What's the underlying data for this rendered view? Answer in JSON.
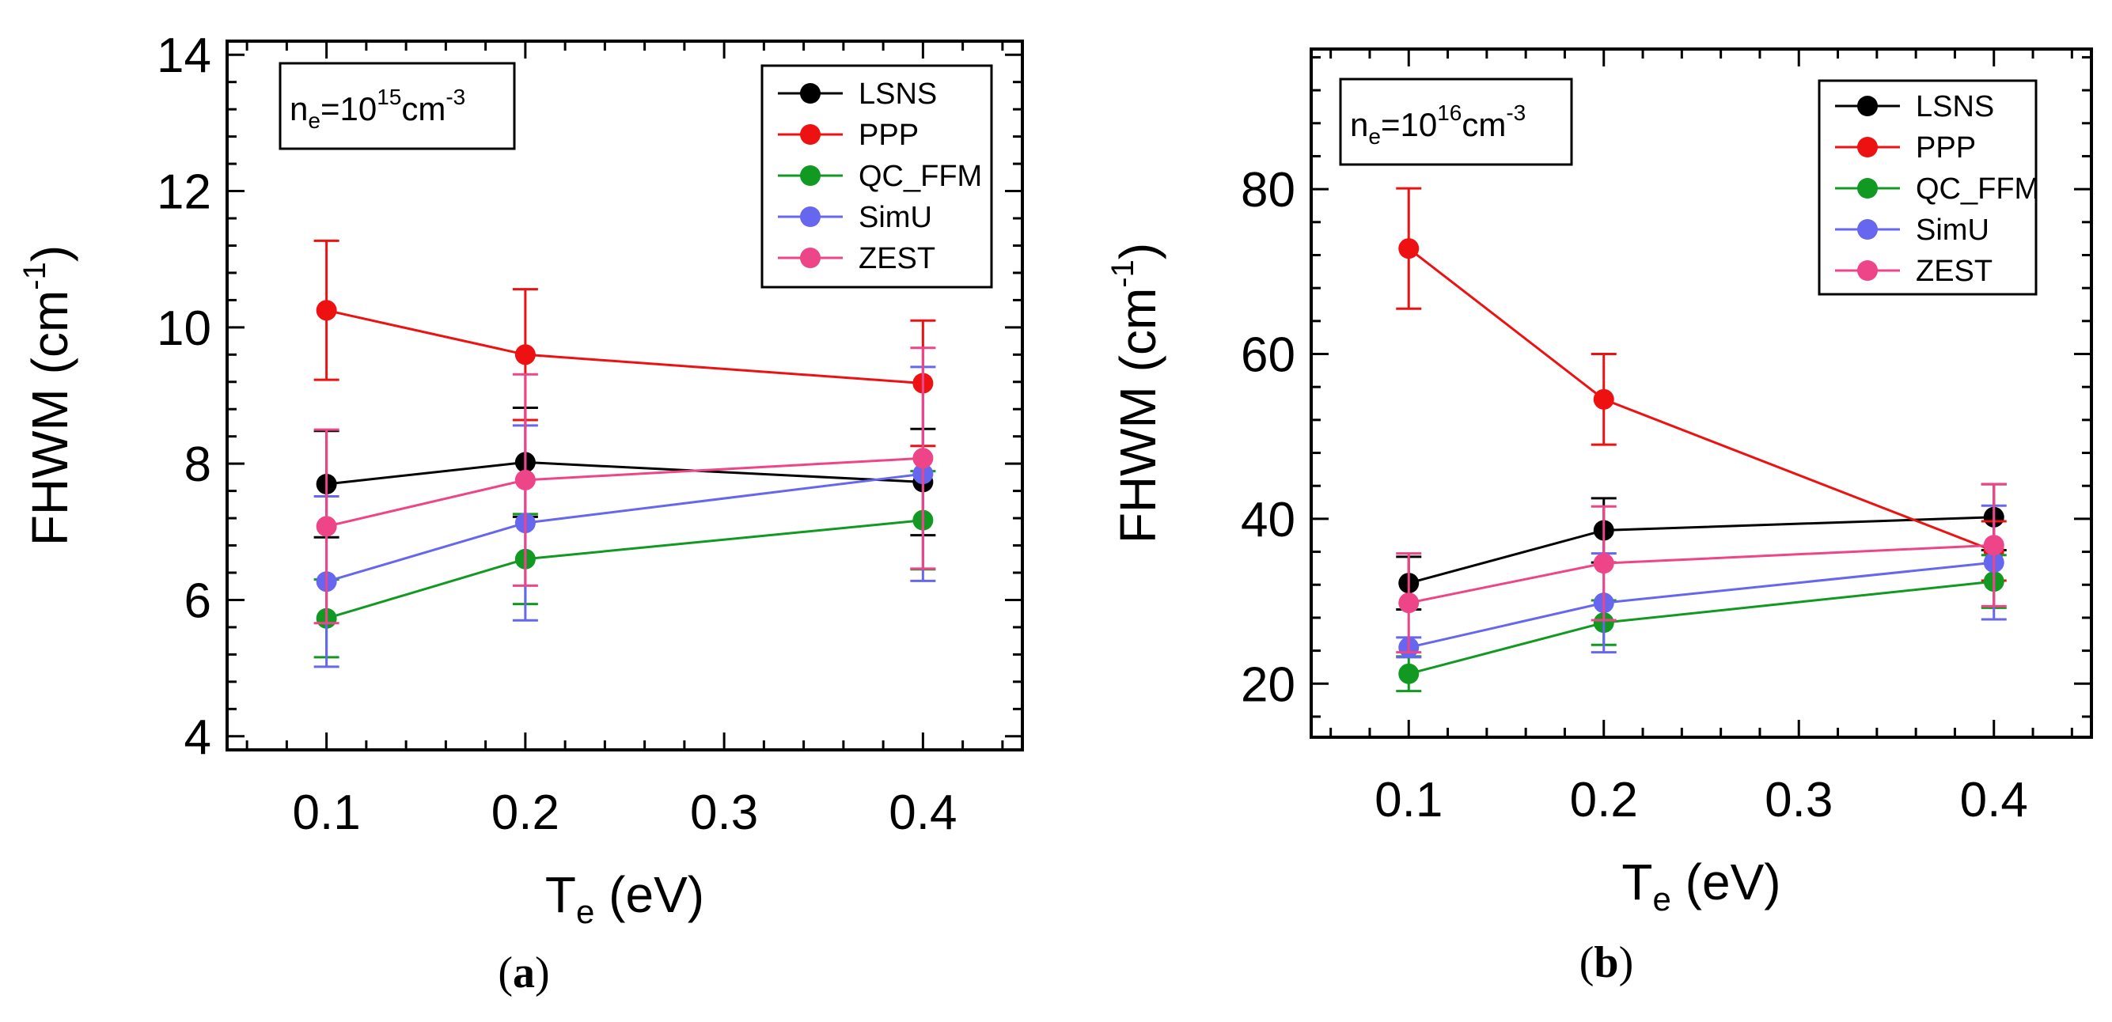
{
  "chart_data": [
    {
      "type": "line",
      "panel": "(a)",
      "panel_letter": "a",
      "annotation": {
        "base": "n",
        "sub": "e",
        "mid": "=10",
        "sup": "15",
        "unit": "cm",
        "unit_sup": "-3"
      },
      "xlabel": {
        "base": "T",
        "sub": "e",
        "rest": " (eV)"
      },
      "ylabel": {
        "text": "FHWM (cm",
        "sup": "-1",
        "close": ")"
      },
      "xlim": [
        0.05,
        0.45
      ],
      "ylim": [
        3.8,
        14.2
      ],
      "xticks": [
        0.1,
        0.2,
        0.3,
        0.4
      ],
      "xtick_labels": [
        "0.1",
        "0.2",
        "0.3",
        "0.4"
      ],
      "yticks": [
        4,
        6,
        8,
        10,
        12,
        14
      ],
      "ytick_labels": [
        "4",
        "6",
        "8",
        "10",
        "12",
        "14"
      ],
      "legend_position": "top-right",
      "x": [
        0.1,
        0.2,
        0.4
      ],
      "series": [
        {
          "name": "LSNS",
          "color": "#000000",
          "values": [
            7.7,
            8.02,
            7.73
          ],
          "err": [
            0.78,
            0.8,
            0.78
          ]
        },
        {
          "name": "PPP",
          "color": "#ee1111",
          "values": [
            10.25,
            9.6,
            9.18
          ],
          "err": [
            1.02,
            0.96,
            0.92
          ]
        },
        {
          "name": "QC_FFM",
          "color": "#119922",
          "values": [
            5.73,
            6.6,
            7.17
          ],
          "err": [
            0.57,
            0.66,
            0.72
          ]
        },
        {
          "name": "SimU",
          "color": "#6666ee",
          "values": [
            6.27,
            7.13,
            7.85
          ],
          "err": [
            1.25,
            1.43,
            1.57
          ]
        },
        {
          "name": "ZEST",
          "color": "#ee4488",
          "values": [
            7.08,
            7.76,
            8.08
          ],
          "err": [
            1.42,
            1.55,
            1.62
          ]
        }
      ]
    },
    {
      "type": "line",
      "panel": "(b)",
      "panel_letter": "b",
      "annotation": {
        "base": "n",
        "sub": "e",
        "mid": "=10",
        "sup": "16",
        "unit": "cm",
        "unit_sup": "-3"
      },
      "xlabel": {
        "base": "T",
        "sub": "e",
        "rest": " (eV)"
      },
      "ylabel": {
        "text": "FHWM (cm",
        "sup": "-1",
        "close": ")"
      },
      "xlim": [
        0.05,
        0.45
      ],
      "ylim": [
        13.5,
        97
      ],
      "xticks": [
        0.1,
        0.2,
        0.3,
        0.4
      ],
      "xtick_labels": [
        "0.1",
        "0.2",
        "0.3",
        "0.4"
      ],
      "yticks": [
        20,
        40,
        60,
        80
      ],
      "ytick_labels": [
        "20",
        "40",
        "60",
        "80"
      ],
      "legend_position": "top-right",
      "x": [
        0.1,
        0.2,
        0.4
      ],
      "series": [
        {
          "name": "LSNS",
          "color": "#000000",
          "values": [
            32.2,
            38.6,
            40.2
          ],
          "err": [
            3.2,
            3.9,
            4.0
          ]
        },
        {
          "name": "PPP",
          "color": "#ee1111",
          "values": [
            72.8,
            54.5,
            36.1
          ],
          "err": [
            7.3,
            5.5,
            3.6
          ]
        },
        {
          "name": "QC_FFM",
          "color": "#119922",
          "values": [
            21.2,
            27.4,
            32.4
          ],
          "err": [
            2.1,
            2.7,
            3.2
          ]
        },
        {
          "name": "SimU",
          "color": "#6666ee",
          "values": [
            24.4,
            29.8,
            34.7
          ],
          "err": [
            1.2,
            6.0,
            6.9
          ]
        },
        {
          "name": "ZEST",
          "color": "#ee4488",
          "values": [
            29.8,
            34.6,
            36.8
          ],
          "err": [
            6.0,
            6.9,
            7.4
          ]
        }
      ]
    }
  ]
}
